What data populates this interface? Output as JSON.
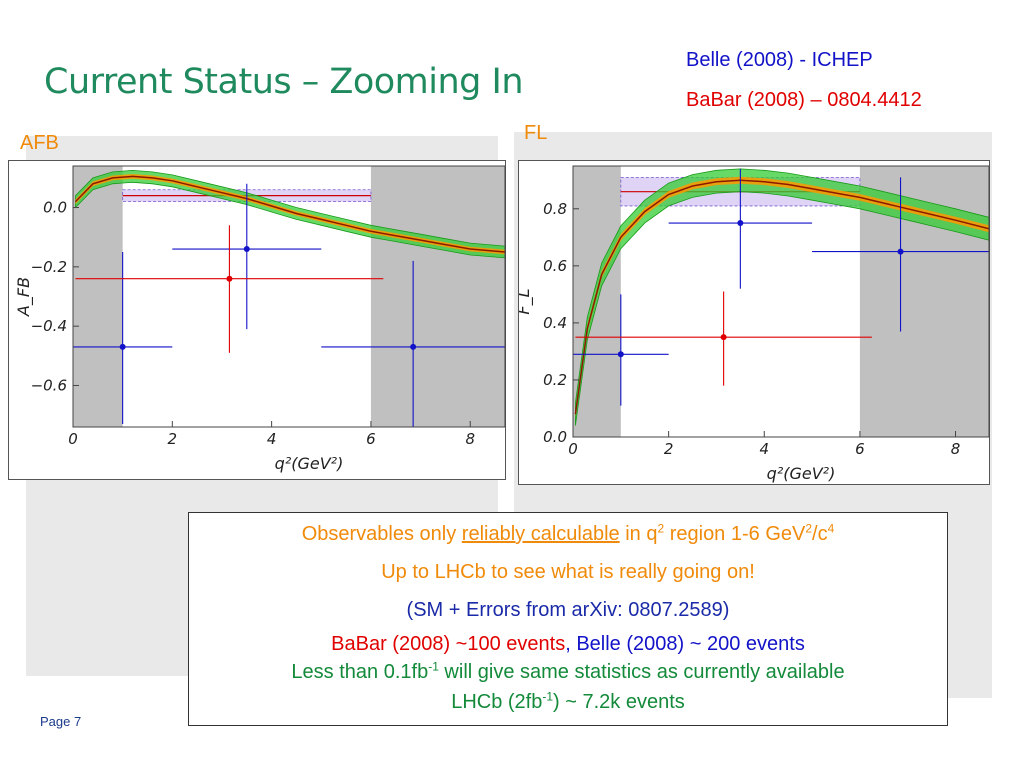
{
  "slide": {
    "title": "Current Status – Zooming In",
    "ref_belle": "Belle (2008) - ICHEP",
    "ref_babar": "BaBar (2008) – 0804.4412",
    "page": "Page 7"
  },
  "note": {
    "line1_a": "Observables only ",
    "line1_b": "reliably calculable",
    "line1_c": " in q",
    "line1_sup1": "2",
    "line1_d": " region 1-6 GeV",
    "line1_sup2": "2",
    "line1_e": "/c",
    "line1_sup3": "4",
    "line2": "Up to LHCb to see what is really going on!",
    "line3": "(SM + Errors from arXiv: 0807.2589)",
    "line4_babar": "BaBar (2008) ~100 events",
    "line4_sep": ", ",
    "line4_belle": "Belle (2008) ~ 200 events",
    "line5_a": "Less than 0.1fb",
    "line5_sup": "-1",
    "line5_b": " will give same statistics as currently available",
    "line6_a": "LHCb (2fb",
    "line6_sup": "-1",
    "line6_b": ") ~ 7.2k events"
  },
  "colors": {
    "belle": "#1212c8",
    "babar": "#e00000",
    "sm_band_outer": "#33cc33",
    "sm_band_inner": "#ff9900",
    "sm_central": "#8b1a00",
    "excluded_region": "#c0c0c0",
    "avg_band": "#c9b8f0"
  },
  "chart_data": [
    {
      "type": "scatter",
      "label": "AFB",
      "title": "",
      "xlabel": "q²(GeV²)",
      "ylabel": "A_FB",
      "xlim": [
        0,
        8.7
      ],
      "ylim": [
        -0.74,
        0.14
      ],
      "xticks": [
        0,
        2,
        4,
        6,
        8
      ],
      "yticks": [
        0.0,
        -0.2,
        -0.4,
        -0.6
      ],
      "ytick_labels": [
        "0.0",
        "−0.2",
        "−0.4",
        "−0.6"
      ],
      "shaded_x_ranges": [
        [
          0,
          1
        ],
        [
          6,
          8.7
        ]
      ],
      "average_band": {
        "x": [
          1,
          6
        ],
        "y_low": 0.02,
        "y_high": 0.06,
        "y_center": 0.04
      },
      "sm_curve": {
        "x": [
          0.05,
          0.4,
          0.8,
          1.2,
          1.6,
          2.0,
          2.5,
          3.0,
          3.5,
          4.0,
          4.5,
          5.0,
          5.5,
          6.0,
          6.5,
          7.0,
          7.5,
          8.0,
          8.7
        ],
        "y": [
          0.02,
          0.08,
          0.1,
          0.105,
          0.1,
          0.09,
          0.07,
          0.05,
          0.03,
          0.005,
          -0.02,
          -0.04,
          -0.06,
          -0.08,
          -0.095,
          -0.11,
          -0.125,
          -0.14,
          -0.15
        ],
        "band_half_width": 0.02,
        "band_half_width_inner": 0.008
      },
      "series": [
        {
          "name": "Belle (2008) - ICHEP",
          "color": "#1212c8",
          "points": [
            {
              "x": 1.0,
              "y": -0.47,
              "xerr": [
                1.0,
                1.0
              ],
              "yerr": [
                0.26,
                0.32
              ]
            },
            {
              "x": 3.5,
              "y": -0.14,
              "xerr": [
                1.5,
                1.5
              ],
              "yerr": [
                0.27,
                0.22
              ]
            },
            {
              "x": 6.85,
              "y": -0.47,
              "xerr": [
                1.85,
                1.85
              ],
              "yerr": [
                0.32,
                0.29
              ]
            }
          ]
        },
        {
          "name": "BaBar (2008) – 0804.4412",
          "color": "#e00000",
          "points": [
            {
              "x": 3.15,
              "y": -0.24,
              "xerr": [
                3.1,
                3.1
              ],
              "yerr": [
                0.25,
                0.18
              ]
            }
          ]
        }
      ]
    },
    {
      "type": "scatter",
      "label": "FL",
      "title": "",
      "xlabel": "q²(GeV²)",
      "ylabel": "F_L",
      "xlim": [
        0,
        8.7
      ],
      "ylim": [
        0.0,
        0.95
      ],
      "xticks": [
        0,
        2,
        4,
        6,
        8
      ],
      "yticks": [
        0.0,
        0.2,
        0.4,
        0.6,
        0.8
      ],
      "ytick_labels": [
        "0.0",
        "0.2",
        "0.4",
        "0.6",
        "0.8"
      ],
      "shaded_x_ranges": [
        [
          0,
          1
        ],
        [
          6,
          8.7
        ]
      ],
      "average_band": {
        "x": [
          1,
          6
        ],
        "y_low": 0.81,
        "y_high": 0.91,
        "y_center": 0.86
      },
      "sm_curve": {
        "x": [
          0.05,
          0.3,
          0.6,
          1.0,
          1.5,
          2.0,
          2.5,
          3.0,
          3.5,
          4.0,
          4.5,
          5.0,
          5.5,
          6.0,
          6.5,
          7.0,
          7.5,
          8.0,
          8.7
        ],
        "y": [
          0.08,
          0.38,
          0.57,
          0.7,
          0.79,
          0.85,
          0.88,
          0.895,
          0.9,
          0.895,
          0.885,
          0.87,
          0.855,
          0.84,
          0.82,
          0.8,
          0.78,
          0.76,
          0.73
        ],
        "band_half_width": 0.04,
        "band_half_width_inner": 0.012
      },
      "series": [
        {
          "name": "Belle (2008) - ICHEP",
          "color": "#1212c8",
          "points": [
            {
              "x": 1.0,
              "y": 0.29,
              "xerr": [
                1.0,
                1.0
              ],
              "yerr": [
                0.18,
                0.21
              ]
            },
            {
              "x": 3.5,
              "y": 0.75,
              "xerr": [
                1.5,
                1.5
              ],
              "yerr": [
                0.23,
                0.19
              ]
            },
            {
              "x": 6.85,
              "y": 0.65,
              "xerr": [
                1.85,
                1.85
              ],
              "yerr": [
                0.28,
                0.26
              ]
            }
          ]
        },
        {
          "name": "BaBar (2008) – 0804.4412",
          "color": "#e00000",
          "points": [
            {
              "x": 3.15,
              "y": 0.35,
              "xerr": [
                3.1,
                3.1
              ],
              "yerr": [
                0.17,
                0.16
              ]
            }
          ]
        }
      ]
    }
  ]
}
